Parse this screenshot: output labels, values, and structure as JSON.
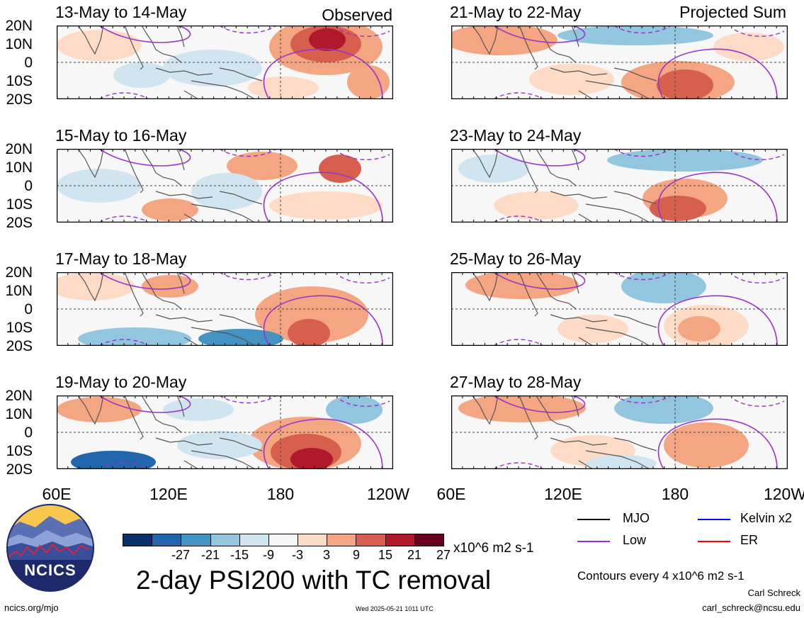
{
  "column_titles": {
    "left": "Observed",
    "right": "Projected Sum"
  },
  "panels": [
    {
      "title": "13-May to 14-May",
      "column": "left",
      "row": 0
    },
    {
      "title": "21-May to 22-May",
      "column": "right",
      "row": 0
    },
    {
      "title": "15-May to 16-May",
      "column": "left",
      "row": 1
    },
    {
      "title": "23-May to 24-May",
      "column": "right",
      "row": 1
    },
    {
      "title": "17-May to 18-May",
      "column": "left",
      "row": 2
    },
    {
      "title": "25-May to 26-May",
      "column": "right",
      "row": 2
    },
    {
      "title": "19-May to 20-May",
      "column": "left",
      "row": 3
    },
    {
      "title": "27-May to 28-May",
      "column": "right",
      "row": 3
    }
  ],
  "lat_labels": [
    "20N",
    "10N",
    "0",
    "10S",
    "20S"
  ],
  "lon_labels": [
    "60E",
    "120E",
    "180",
    "120W"
  ],
  "colorbar": {
    "colors": [
      "#08306b",
      "#2166ac",
      "#4393c3",
      "#92c5de",
      "#d1e5f0",
      "#f7f7f7",
      "#fddbc7",
      "#f4a582",
      "#d6604d",
      "#b2182b",
      "#67001f"
    ],
    "ticks": [
      "-27",
      "-21",
      "-15",
      "-9",
      "-3",
      "3",
      "9",
      "15",
      "21",
      "27"
    ],
    "units": "x10^6 m2 s-1"
  },
  "title": "2-day PSI200 with TC removal",
  "legend": [
    {
      "label": "MJO",
      "color": "#000000"
    },
    {
      "label": "Kelvin x2",
      "color": "#0000ff"
    },
    {
      "label": "Low",
      "color": "#9932cc"
    },
    {
      "label": "ER",
      "color": "#ff0000"
    }
  ],
  "contour_note": "Contours every 4 x10^6 m2 s-1",
  "author": "Carl Schreck",
  "email": "carl_schreck@ncsu.edu",
  "site": "ncics.org/mjo",
  "timestamp": "Wed 2025-05-21 1011 UTC",
  "logo_text": "NCICS"
}
